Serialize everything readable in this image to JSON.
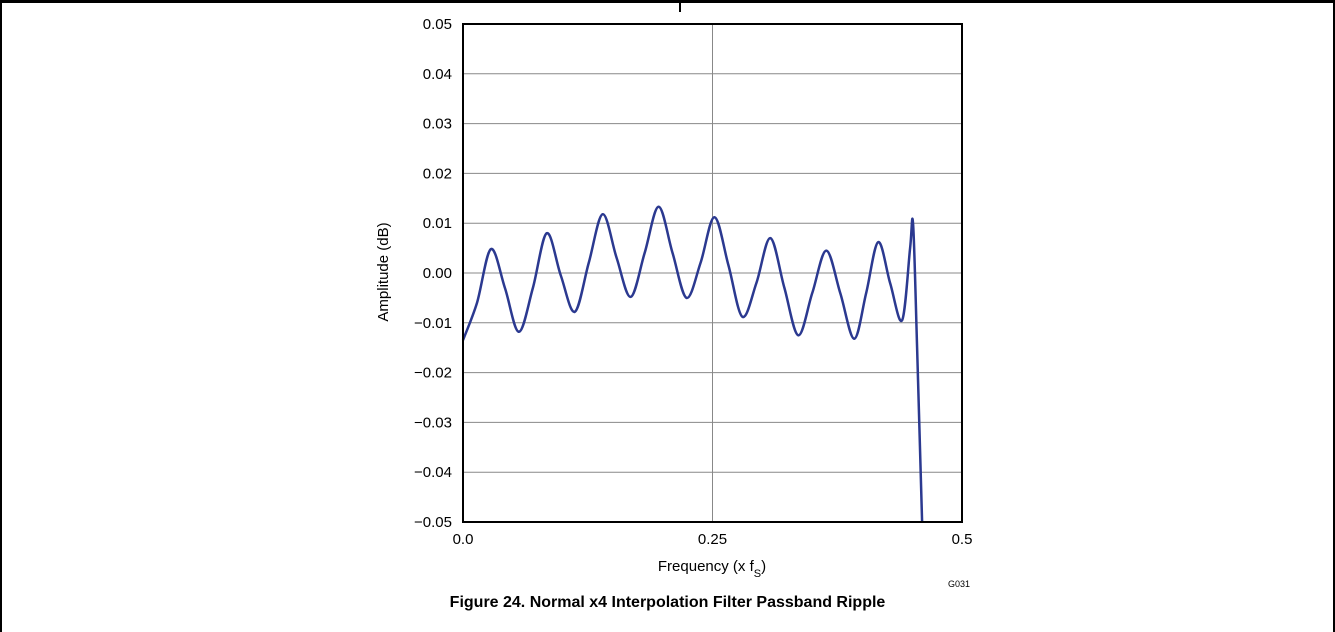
{
  "chart_data": {
    "type": "line",
    "title": "",
    "xlabel": "Frequency (x fS)",
    "ylabel": "Amplitude (dB)",
    "xlim": [
      0,
      0.5
    ],
    "ylim": [
      -0.05,
      0.05
    ],
    "x_ticks": [
      0.0,
      0.25,
      0.5
    ],
    "x_tick_labels": [
      "0.0",
      "0.25",
      "0.5"
    ],
    "y_ticks": [
      0.05,
      0.04,
      0.03,
      0.02,
      0.01,
      0.0,
      -0.01,
      -0.02,
      -0.03,
      -0.04,
      -0.05
    ],
    "y_tick_labels": [
      "0.05",
      "0.04",
      "0.03",
      "0.02",
      "0.01",
      "0.00",
      "−0.01",
      "−0.02",
      "−0.03",
      "−0.04",
      "−0.05"
    ],
    "grid": true,
    "series": [
      {
        "color": "#2b3990",
        "x": [
          0.0,
          0.014,
          0.028,
          0.042,
          0.056,
          0.07,
          0.084,
          0.098,
          0.112,
          0.126,
          0.14,
          0.154,
          0.168,
          0.182,
          0.196,
          0.21,
          0.224,
          0.238,
          0.252,
          0.266,
          0.28,
          0.294,
          0.308,
          0.322,
          0.336,
          0.35,
          0.364,
          0.378,
          0.392,
          0.404,
          0.416,
          0.428,
          0.44,
          0.448,
          0.451,
          0.455,
          0.46
        ],
        "y": [
          -0.0135,
          -0.006,
          0.0048,
          -0.003,
          -0.0118,
          -0.003,
          0.008,
          -0.0005,
          -0.0078,
          0.002,
          0.0118,
          0.003,
          -0.0048,
          0.004,
          0.0133,
          0.004,
          -0.005,
          0.002,
          0.0112,
          0.0015,
          -0.0088,
          -0.002,
          0.007,
          -0.003,
          -0.0125,
          -0.004,
          0.0045,
          -0.004,
          -0.0132,
          -0.004,
          0.0062,
          -0.002,
          -0.0095,
          0.005,
          0.0098,
          -0.015,
          -0.05
        ]
      }
    ],
    "annotations": [
      "G031"
    ]
  },
  "caption": "Figure 24. Normal x4 Interpolation Filter Passband Ripple"
}
